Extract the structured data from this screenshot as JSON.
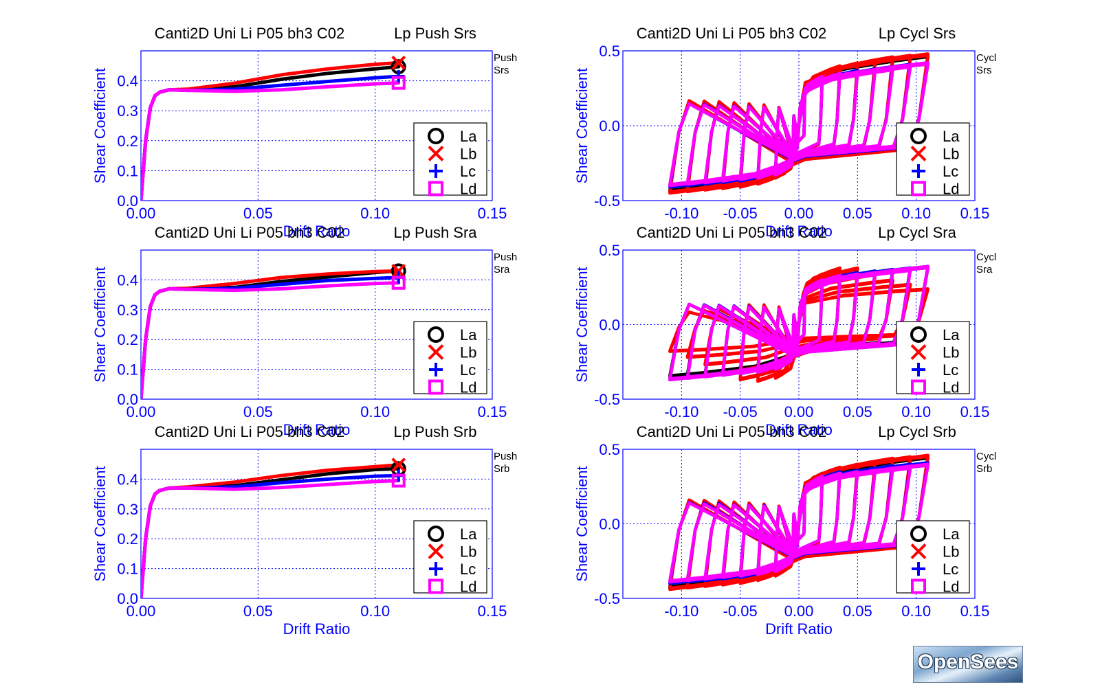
{
  "colors": {
    "axis": "#0000ff",
    "grid": "#0000ff",
    "title": "#000000",
    "La": "#000000",
    "Lb": "#ff0000",
    "Lc": "#0000ff",
    "Ld": "#ff00ff"
  },
  "logo": {
    "text": "OpenSees"
  },
  "chart_data": [
    {
      "type": "line",
      "mode": "push",
      "title_left": "Canti2D Uni Li P05 bh3 C02",
      "title_right": "Lp Push Srs",
      "side_note": [
        "Push",
        "Srs"
      ],
      "xlabel": "Drift Ratio",
      "ylabel": "Shear Coefficient",
      "xlim": [
        0,
        0.15
      ],
      "ylim": [
        0,
        0.5
      ],
      "xticks": [
        "0.00",
        "0.05",
        "0.10",
        "0.15"
      ],
      "yticks": [
        "0.0",
        "0.1",
        "0.2",
        "0.3",
        "0.4"
      ],
      "grid": true,
      "legend_position": "bottom-right",
      "series": [
        {
          "name": "La",
          "marker": "circle",
          "x": [
            0,
            0.002,
            0.004,
            0.006,
            0.008,
            0.012,
            0.02,
            0.04,
            0.06,
            0.08,
            0.1,
            0.11
          ],
          "y": [
            0,
            0.2,
            0.31,
            0.35,
            0.362,
            0.37,
            0.37,
            0.38,
            0.405,
            0.425,
            0.44,
            0.447
          ]
        },
        {
          "name": "Lb",
          "marker": "x",
          "x": [
            0,
            0.002,
            0.004,
            0.006,
            0.008,
            0.012,
            0.02,
            0.04,
            0.06,
            0.08,
            0.1,
            0.11
          ],
          "y": [
            0,
            0.2,
            0.31,
            0.35,
            0.362,
            0.37,
            0.372,
            0.392,
            0.42,
            0.44,
            0.455,
            0.46
          ]
        },
        {
          "name": "Lc",
          "marker": "plus",
          "x": [
            0,
            0.002,
            0.004,
            0.006,
            0.008,
            0.012,
            0.02,
            0.04,
            0.06,
            0.08,
            0.1,
            0.11
          ],
          "y": [
            0,
            0.2,
            0.31,
            0.35,
            0.362,
            0.37,
            0.368,
            0.372,
            0.385,
            0.398,
            0.41,
            0.415
          ]
        },
        {
          "name": "Ld",
          "marker": "square",
          "x": [
            0,
            0.002,
            0.004,
            0.006,
            0.008,
            0.012,
            0.02,
            0.04,
            0.06,
            0.08,
            0.1,
            0.11
          ],
          "y": [
            0,
            0.2,
            0.31,
            0.35,
            0.362,
            0.37,
            0.368,
            0.365,
            0.37,
            0.38,
            0.39,
            0.393
          ]
        }
      ]
    },
    {
      "type": "line",
      "mode": "cyclic",
      "title_left": "Canti2D Uni Li P05 bh3 C02",
      "title_right": "Lp Cycl Srs",
      "side_note": [
        "Cycl",
        "Srs"
      ],
      "xlabel": "Drift Ratio",
      "ylabel": "Shear Coefficient",
      "xlim": [
        -0.15,
        0.15
      ],
      "ylim": [
        -0.5,
        0.5
      ],
      "xticks": [
        "-0.10",
        "-0.05",
        "0.00",
        "0.05",
        "0.10",
        "0.15"
      ],
      "yticks": [
        "-0.5",
        "0.0",
        "0.5"
      ],
      "grid": true,
      "legend_position": "bottom-right",
      "amplitudes": [
        0.005,
        0.02,
        0.035,
        0.05,
        0.065,
        0.08,
        0.095,
        0.11
      ],
      "series": [
        {
          "name": "La",
          "marker": "circle",
          "peak_pos": [
            0.19,
            0.35,
            0.39,
            0.41,
            0.43,
            0.45,
            0.46,
            0.47
          ],
          "peak_neg": [
            -0.19,
            -0.35,
            -0.38,
            -0.4,
            -0.41,
            -0.42,
            -0.43,
            -0.44
          ]
        },
        {
          "name": "Lb",
          "marker": "x",
          "peak_pos": [
            0.19,
            0.35,
            0.4,
            0.42,
            0.44,
            0.46,
            0.47,
            0.48
          ],
          "peak_neg": [
            -0.19,
            -0.35,
            -0.39,
            -0.41,
            -0.42,
            -0.43,
            -0.44,
            -0.45
          ]
        },
        {
          "name": "Lc",
          "marker": "plus",
          "peak_pos": [
            0.19,
            0.33,
            0.35,
            0.37,
            0.38,
            0.39,
            0.41,
            0.42
          ],
          "peak_neg": [
            -0.19,
            -0.33,
            -0.35,
            -0.37,
            -0.38,
            -0.39,
            -0.4,
            -0.41
          ]
        },
        {
          "name": "Ld",
          "marker": "square",
          "peak_pos": [
            0.19,
            0.33,
            0.35,
            0.36,
            0.37,
            0.38,
            0.4,
            0.42
          ],
          "peak_neg": [
            -0.19,
            -0.33,
            -0.35,
            -0.36,
            -0.37,
            -0.38,
            -0.39,
            -0.4
          ]
        }
      ]
    },
    {
      "type": "line",
      "mode": "push",
      "title_left": "Canti2D Uni Li P05 bh3 C02",
      "title_right": "Lp Push Sra",
      "side_note": [
        "Push",
        "Sra"
      ],
      "xlabel": "Drift Ratio",
      "ylabel": "Shear Coefficient",
      "xlim": [
        0,
        0.15
      ],
      "ylim": [
        0,
        0.5
      ],
      "xticks": [
        "0.00",
        "0.05",
        "0.10",
        "0.15"
      ],
      "yticks": [
        "0.0",
        "0.1",
        "0.2",
        "0.3",
        "0.4"
      ],
      "grid": true,
      "legend_position": "bottom-right",
      "series": [
        {
          "name": "La",
          "marker": "circle",
          "x": [
            0,
            0.002,
            0.004,
            0.006,
            0.008,
            0.012,
            0.02,
            0.04,
            0.06,
            0.08,
            0.1,
            0.11
          ],
          "y": [
            0,
            0.2,
            0.31,
            0.35,
            0.362,
            0.37,
            0.37,
            0.375,
            0.395,
            0.41,
            0.425,
            0.43
          ]
        },
        {
          "name": "Lb",
          "marker": "x",
          "x": [
            0,
            0.002,
            0.004,
            0.006,
            0.008,
            0.012,
            0.02,
            0.04,
            0.06,
            0.08,
            0.1,
            0.11
          ],
          "y": [
            0,
            0.2,
            0.31,
            0.35,
            0.362,
            0.37,
            0.372,
            0.388,
            0.408,
            0.42,
            0.428,
            0.43
          ]
        },
        {
          "name": "Lc",
          "marker": "plus",
          "x": [
            0,
            0.002,
            0.004,
            0.006,
            0.008,
            0.012,
            0.02,
            0.04,
            0.06,
            0.08,
            0.1,
            0.11
          ],
          "y": [
            0,
            0.2,
            0.31,
            0.35,
            0.362,
            0.37,
            0.368,
            0.372,
            0.385,
            0.398,
            0.405,
            0.408
          ]
        },
        {
          "name": "Ld",
          "marker": "square",
          "x": [
            0,
            0.002,
            0.004,
            0.006,
            0.008,
            0.012,
            0.02,
            0.04,
            0.06,
            0.08,
            0.1,
            0.11
          ],
          "y": [
            0,
            0.2,
            0.31,
            0.35,
            0.362,
            0.37,
            0.368,
            0.365,
            0.37,
            0.38,
            0.388,
            0.39
          ]
        }
      ]
    },
    {
      "type": "line",
      "mode": "cyclic",
      "title_left": "Canti2D Uni Li P05 bh3 C02",
      "title_right": "Lp Cycl Sra",
      "side_note": [
        "Cycl",
        "Sra"
      ],
      "xlabel": "Drift Ratio",
      "ylabel": "Shear Coefficient",
      "xlim": [
        -0.15,
        0.15
      ],
      "ylim": [
        -0.5,
        0.5
      ],
      "xticks": [
        "-0.10",
        "-0.05",
        "0.00",
        "0.05",
        "0.10",
        "0.15"
      ],
      "yticks": [
        "-0.5",
        "0.0",
        "0.5"
      ],
      "grid": true,
      "legend_position": "bottom-right",
      "amplitudes": [
        0.005,
        0.02,
        0.035,
        0.05,
        0.065,
        0.08,
        0.095,
        0.11
      ],
      "series": [
        {
          "name": "La",
          "marker": "circle",
          "peak_pos": [
            0.19,
            0.3,
            0.33,
            0.35,
            0.36,
            0.37,
            0.38,
            0.39
          ],
          "peak_neg": [
            -0.19,
            -0.3,
            -0.31,
            -0.32,
            -0.33,
            -0.34,
            -0.34,
            -0.35
          ]
        },
        {
          "name": "Lb",
          "marker": "x",
          "peak_pos": [
            0.19,
            0.34,
            0.38,
            0.38,
            0.34,
            0.3,
            0.27,
            0.24
          ],
          "peak_neg": [
            -0.19,
            -0.36,
            -0.38,
            -0.37,
            -0.33,
            -0.27,
            -0.22,
            -0.18
          ]
        },
        {
          "name": "Lc",
          "marker": "plus",
          "peak_pos": [
            0.19,
            0.3,
            0.33,
            0.35,
            0.36,
            0.37,
            0.38,
            0.39
          ],
          "peak_neg": [
            -0.19,
            -0.3,
            -0.32,
            -0.33,
            -0.34,
            -0.35,
            -0.36,
            -0.37
          ]
        },
        {
          "name": "Ld",
          "marker": "square",
          "peak_pos": [
            0.19,
            0.3,
            0.33,
            0.34,
            0.35,
            0.36,
            0.37,
            0.39
          ],
          "peak_neg": [
            -0.19,
            -0.3,
            -0.32,
            -0.33,
            -0.34,
            -0.35,
            -0.36,
            -0.37
          ]
        }
      ]
    },
    {
      "type": "line",
      "mode": "push",
      "title_left": "Canti2D Uni Li P05 bh3 C02",
      "title_right": "Lp Push Srb",
      "side_note": [
        "Push",
        "Srb"
      ],
      "xlabel": "Drift Ratio",
      "ylabel": "Shear Coefficient",
      "xlim": [
        0,
        0.15
      ],
      "ylim": [
        0,
        0.5
      ],
      "xticks": [
        "0.00",
        "0.05",
        "0.10",
        "0.15"
      ],
      "yticks": [
        "0.0",
        "0.1",
        "0.2",
        "0.3",
        "0.4"
      ],
      "grid": true,
      "legend_position": "bottom-right",
      "series": [
        {
          "name": "La",
          "marker": "circle",
          "x": [
            0,
            0.002,
            0.004,
            0.006,
            0.008,
            0.012,
            0.02,
            0.04,
            0.06,
            0.08,
            0.1,
            0.11
          ],
          "y": [
            0,
            0.2,
            0.31,
            0.35,
            0.362,
            0.37,
            0.372,
            0.378,
            0.398,
            0.418,
            0.432,
            0.435
          ]
        },
        {
          "name": "Lb",
          "marker": "x",
          "x": [
            0,
            0.002,
            0.004,
            0.006,
            0.008,
            0.012,
            0.02,
            0.04,
            0.06,
            0.08,
            0.1,
            0.11
          ],
          "y": [
            0,
            0.2,
            0.31,
            0.35,
            0.362,
            0.37,
            0.374,
            0.39,
            0.412,
            0.43,
            0.442,
            0.448
          ]
        },
        {
          "name": "Lc",
          "marker": "plus",
          "x": [
            0,
            0.002,
            0.004,
            0.006,
            0.008,
            0.012,
            0.02,
            0.04,
            0.06,
            0.08,
            0.1,
            0.11
          ],
          "y": [
            0,
            0.2,
            0.31,
            0.35,
            0.362,
            0.37,
            0.37,
            0.374,
            0.388,
            0.4,
            0.41,
            0.412
          ]
        },
        {
          "name": "Ld",
          "marker": "square",
          "x": [
            0,
            0.002,
            0.004,
            0.006,
            0.008,
            0.012,
            0.02,
            0.04,
            0.06,
            0.08,
            0.1,
            0.11
          ],
          "y": [
            0,
            0.2,
            0.31,
            0.35,
            0.362,
            0.37,
            0.37,
            0.366,
            0.372,
            0.382,
            0.392,
            0.395
          ]
        }
      ]
    },
    {
      "type": "line",
      "mode": "cyclic",
      "title_left": "Canti2D Uni Li P05 bh3 C02",
      "title_right": "Lp Cycl Srb",
      "side_note": [
        "Cycl",
        "Srb"
      ],
      "xlabel": "Drift Ratio",
      "ylabel": "Shear Coefficient",
      "xlim": [
        -0.15,
        0.15
      ],
      "ylim": [
        -0.5,
        0.5
      ],
      "xticks": [
        "-0.10",
        "-0.05",
        "0.00",
        "0.05",
        "0.10",
        "0.15"
      ],
      "yticks": [
        "-0.5",
        "0.0",
        "0.5"
      ],
      "grid": true,
      "legend_position": "bottom-right",
      "amplitudes": [
        0.005,
        0.02,
        0.035,
        0.05,
        0.065,
        0.08,
        0.095,
        0.11
      ],
      "series": [
        {
          "name": "La",
          "marker": "circle",
          "peak_pos": [
            0.19,
            0.34,
            0.37,
            0.39,
            0.41,
            0.42,
            0.44,
            0.45
          ],
          "peak_neg": [
            -0.19,
            -0.34,
            -0.37,
            -0.39,
            -0.4,
            -0.41,
            -0.42,
            -0.43
          ]
        },
        {
          "name": "Lb",
          "marker": "x",
          "peak_pos": [
            0.19,
            0.34,
            0.38,
            0.4,
            0.42,
            0.44,
            0.45,
            0.46
          ],
          "peak_neg": [
            -0.19,
            -0.35,
            -0.38,
            -0.4,
            -0.41,
            -0.42,
            -0.43,
            -0.44
          ]
        },
        {
          "name": "Lc",
          "marker": "plus",
          "peak_pos": [
            0.19,
            0.32,
            0.35,
            0.36,
            0.37,
            0.39,
            0.4,
            0.41
          ],
          "peak_neg": [
            -0.19,
            -0.32,
            -0.34,
            -0.36,
            -0.37,
            -0.38,
            -0.39,
            -0.4
          ]
        },
        {
          "name": "Ld",
          "marker": "square",
          "peak_pos": [
            0.19,
            0.32,
            0.34,
            0.35,
            0.36,
            0.37,
            0.38,
            0.4
          ],
          "peak_neg": [
            -0.19,
            -0.32,
            -0.34,
            -0.35,
            -0.36,
            -0.37,
            -0.38,
            -0.39
          ]
        }
      ]
    }
  ]
}
